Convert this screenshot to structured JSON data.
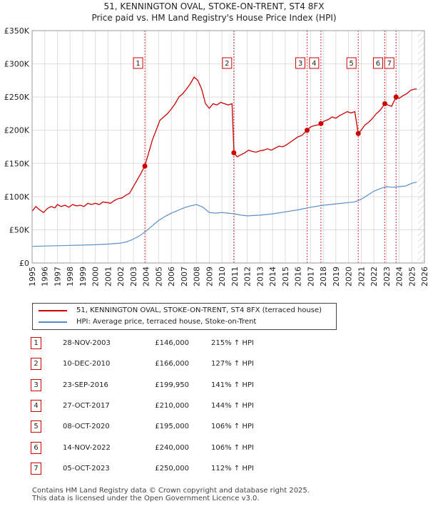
{
  "chart_data": {
    "type": "line",
    "title": "51, KENNINGTON OVAL, STOKE-ON-TRENT, ST4 8FX",
    "subtitle": "Price paid vs. HM Land Registry's House Price Index (HPI)",
    "xlim": [
      1995,
      2026
    ],
    "ylim": [
      0,
      350000
    ],
    "x_ticks": [
      1995,
      1996,
      1997,
      1998,
      1999,
      2000,
      2001,
      2002,
      2003,
      2004,
      2005,
      2006,
      2007,
      2008,
      2009,
      2010,
      2011,
      2012,
      2013,
      2014,
      2015,
      2016,
      2017,
      2018,
      2019,
      2020,
      2021,
      2022,
      2023,
      2024,
      2025,
      2026
    ],
    "y_ticks": [
      0,
      50000,
      100000,
      150000,
      200000,
      250000,
      300000,
      350000
    ],
    "y_tick_labels": [
      "£0",
      "£50K",
      "£100K",
      "£150K",
      "£200K",
      "£250K",
      "£300K",
      "£350K"
    ],
    "grid": true,
    "future_hatch_from": 2025.5,
    "colors": {
      "property": "#cc0000",
      "hpi": "#5b8fc9",
      "vline": "#cc0000",
      "grid": "#dddddd",
      "plot_bg": "#ffffff",
      "shade": "#e8eef8"
    },
    "series": [
      {
        "name": "51, KENNINGTON OVAL, STOKE-ON-TRENT, ST4 8FX (terraced house)",
        "key": "property",
        "x": [
          1995.0,
          1995.3,
          1995.6,
          1995.9,
          1996.2,
          1996.5,
          1996.8,
          1997.0,
          1997.3,
          1997.6,
          1997.9,
          1998.2,
          1998.5,
          1998.8,
          1999.1,
          1999.4,
          1999.7,
          2000.0,
          2000.3,
          2000.6,
          2000.9,
          2001.2,
          2001.5,
          2001.8,
          2002.1,
          2002.4,
          2002.7,
          2003.0,
          2003.3,
          2003.6,
          2003.9,
          2004.2,
          2004.5,
          2004.8,
          2005.1,
          2005.4,
          2005.7,
          2006.0,
          2006.3,
          2006.6,
          2006.9,
          2007.2,
          2007.5,
          2007.8,
          2008.1,
          2008.4,
          2008.7,
          2009.0,
          2009.3,
          2009.6,
          2009.9,
          2010.2,
          2010.5,
          2010.8,
          2010.95,
          2011.2,
          2011.5,
          2011.8,
          2012.1,
          2012.4,
          2012.7,
          2013.0,
          2013.3,
          2013.6,
          2013.9,
          2014.2,
          2014.5,
          2014.8,
          2015.1,
          2015.4,
          2015.7,
          2016.0,
          2016.3,
          2016.73,
          2017.0,
          2017.3,
          2017.6,
          2017.82,
          2018.1,
          2018.4,
          2018.7,
          2019.0,
          2019.3,
          2019.6,
          2019.9,
          2020.2,
          2020.5,
          2020.77,
          2021.0,
          2021.3,
          2021.6,
          2021.9,
          2022.2,
          2022.5,
          2022.87,
          2023.1,
          2023.4,
          2023.76,
          2024.0,
          2024.3,
          2024.6,
          2024.9,
          2025.2,
          2025.4
        ],
        "values": [
          78000,
          85000,
          80000,
          76000,
          82000,
          85000,
          83000,
          88000,
          85000,
          87000,
          84000,
          88000,
          86000,
          87000,
          85000,
          90000,
          88000,
          90000,
          88000,
          92000,
          91000,
          90000,
          94000,
          97000,
          98000,
          102000,
          105000,
          115000,
          125000,
          135000,
          146000,
          165000,
          185000,
          200000,
          215000,
          220000,
          225000,
          232000,
          240000,
          250000,
          255000,
          262000,
          270000,
          280000,
          275000,
          262000,
          240000,
          233000,
          240000,
          238000,
          242000,
          240000,
          238000,
          240000,
          166000,
          160000,
          163000,
          166000,
          170000,
          168000,
          167000,
          169000,
          170000,
          172000,
          170000,
          173000,
          176000,
          175000,
          178000,
          182000,
          186000,
          190000,
          192000,
          199950,
          205000,
          207000,
          208000,
          210000,
          214000,
          216000,
          220000,
          218000,
          222000,
          225000,
          228000,
          226000,
          228000,
          195000,
          200000,
          208000,
          212000,
          218000,
          225000,
          230000,
          240000,
          238000,
          236000,
          250000,
          248000,
          252000,
          255000,
          260000,
          262000,
          262000
        ]
      },
      {
        "name": "HPI: Average price, terraced house, Stoke-on-Trent",
        "key": "hpi",
        "x": [
          1995.0,
          1996.0,
          1997.0,
          1998.0,
          1999.0,
          2000.0,
          2001.0,
          2002.0,
          2002.5,
          2003.0,
          2003.5,
          2004.0,
          2004.5,
          2005.0,
          2005.5,
          2006.0,
          2006.5,
          2007.0,
          2007.5,
          2008.0,
          2008.5,
          2009.0,
          2009.5,
          2010.0,
          2010.5,
          2011.0,
          2011.5,
          2012.0,
          2013.0,
          2014.0,
          2015.0,
          2016.0,
          2017.0,
          2018.0,
          2019.0,
          2020.0,
          2020.5,
          2021.0,
          2021.5,
          2022.0,
          2022.5,
          2023.0,
          2023.5,
          2024.0,
          2024.5,
          2025.0,
          2025.4
        ],
        "values": [
          25000,
          25500,
          26000,
          26500,
          27000,
          27500,
          28500,
          30000,
          32000,
          36000,
          41000,
          48000,
          56000,
          64000,
          70000,
          75000,
          79000,
          83000,
          86000,
          88000,
          84000,
          76000,
          75000,
          76000,
          75000,
          74000,
          72000,
          71000,
          72000,
          74000,
          77000,
          80000,
          84000,
          87000,
          89000,
          91000,
          92000,
          96000,
          102000,
          108000,
          112000,
          115000,
          114000,
          115000,
          116000,
          120000,
          122000
        ]
      }
    ],
    "sales": [
      {
        "label": "1",
        "x": 2003.91,
        "value": 146000
      },
      {
        "label": "2",
        "x": 2010.94,
        "value": 166000
      },
      {
        "label": "3",
        "x": 2016.73,
        "value": 199950
      },
      {
        "label": "4",
        "x": 2017.82,
        "value": 210000
      },
      {
        "label": "5",
        "x": 2020.77,
        "value": 195000
      },
      {
        "label": "6",
        "x": 2022.87,
        "value": 240000
      },
      {
        "label": "7",
        "x": 2023.76,
        "value": 250000
      }
    ]
  },
  "legend": {
    "property_label": "51, KENNINGTON OVAL, STOKE-ON-TRENT, ST4 8FX (terraced house)",
    "hpi_label": "HPI: Average price, terraced house, Stoke-on-Trent"
  },
  "sales_table": [
    {
      "num": "1",
      "date": "28-NOV-2003",
      "price": "£146,000",
      "hpi": "215% ↑ HPI"
    },
    {
      "num": "2",
      "date": "10-DEC-2010",
      "price": "£166,000",
      "hpi": "127% ↑ HPI"
    },
    {
      "num": "3",
      "date": "23-SEP-2016",
      "price": "£199,950",
      "hpi": "141% ↑ HPI"
    },
    {
      "num": "4",
      "date": "27-OCT-2017",
      "price": "£210,000",
      "hpi": "144% ↑ HPI"
    },
    {
      "num": "5",
      "date": "08-OCT-2020",
      "price": "£195,000",
      "hpi": "106% ↑ HPI"
    },
    {
      "num": "6",
      "date": "14-NOV-2022",
      "price": "£240,000",
      "hpi": "106% ↑ HPI"
    },
    {
      "num": "7",
      "date": "05-OCT-2023",
      "price": "£250,000",
      "hpi": "112% ↑ HPI"
    }
  ],
  "footer": {
    "line1": "Contains HM Land Registry data © Crown copyright and database right 2025.",
    "line2": "This data is licensed under the Open Government Licence v3.0."
  }
}
